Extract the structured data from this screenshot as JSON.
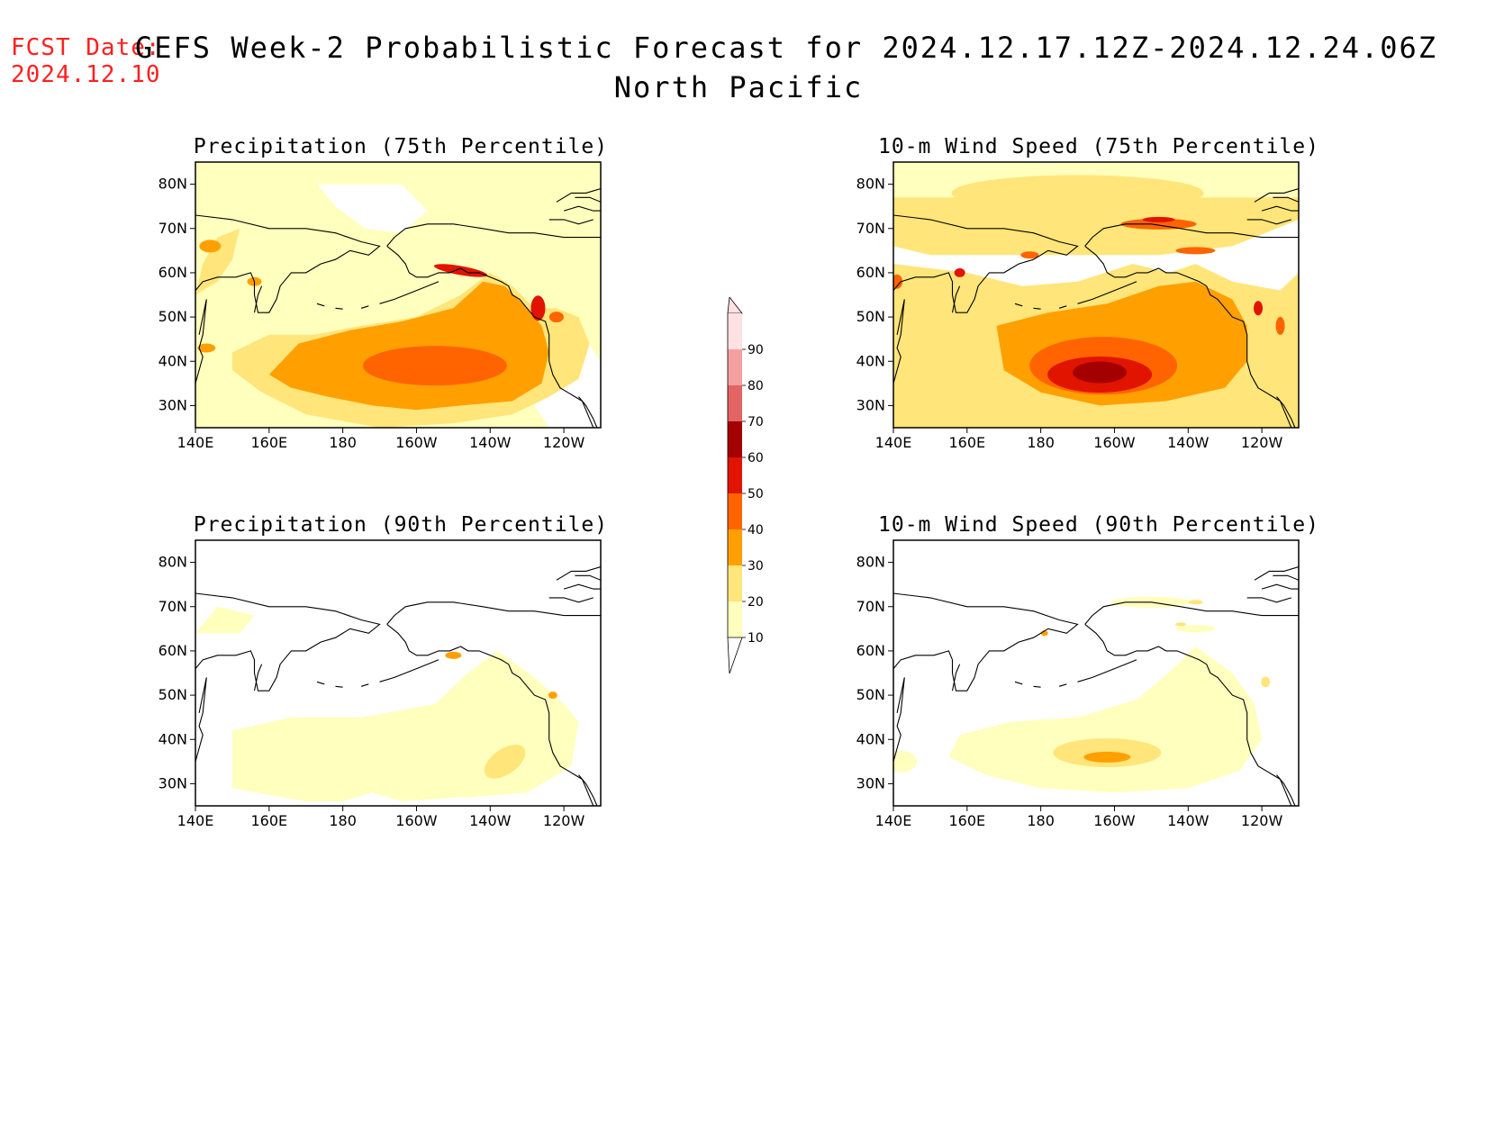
{
  "header": {
    "fcst_label": "FCST Date:",
    "fcst_date": "2024.12.10",
    "title": "GEFS Week-2 Probabilistic Forecast for 2024.12.17.12Z-2024.12.24.06Z",
    "subtitle": "North Pacific"
  },
  "axes": {
    "lat_ticks": [
      "80N",
      "70N",
      "60N",
      "50N",
      "40N",
      "30N"
    ],
    "lon_ticks": [
      "140E",
      "160E",
      "180",
      "160W",
      "140W",
      "120W"
    ]
  },
  "colors": {
    "10": "#ffffbe",
    "20": "#ffe57a",
    "30": "#ffa000",
    "40": "#ff6400",
    "50": "#e11400",
    "60": "#a50000",
    "70": "#e26464",
    "80": "#f5a0a0",
    "90": "#ffe1e1"
  },
  "colorbar": {
    "levels": [
      "10",
      "20",
      "30",
      "40",
      "50",
      "60",
      "70",
      "80",
      "90"
    ]
  },
  "panels": [
    {
      "id": "precip75",
      "title": "Precipitation (75th Percentile)",
      "field": "precipitation",
      "percentile": "75th"
    },
    {
      "id": "wind75",
      "title": "10-m Wind Speed (75th Percentile)",
      "field": "wind",
      "percentile": "75th"
    },
    {
      "id": "precip90",
      "title": "Precipitation (90th Percentile)",
      "field": "precipitation",
      "percentile": "90th"
    },
    {
      "id": "wind90",
      "title": "10-m Wind Speed (90th Percentile)",
      "field": "wind",
      "percentile": "90th"
    }
  ]
}
